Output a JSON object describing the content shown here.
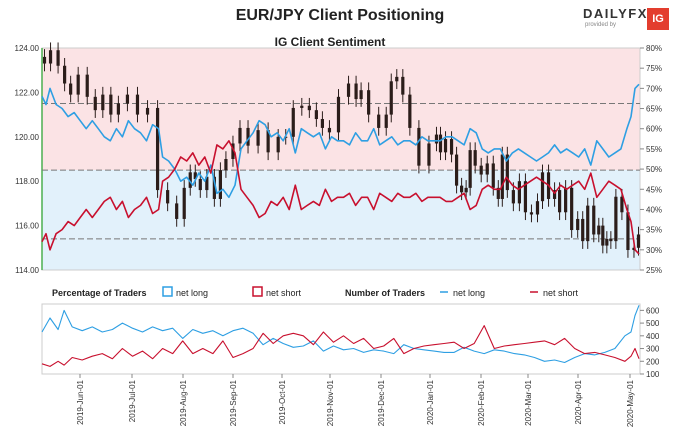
{
  "header": {
    "title": "EUR/JPY Client Positioning",
    "logo_text": "DAILYFX",
    "logo_sub": "provided by",
    "logo_badge": "IG"
  },
  "chart_data": [
    {
      "type": "line",
      "title": "IG Client Sentiment",
      "left_axis": {
        "ticks": [
          "124.00",
          "122.00",
          "120.00",
          "118.00",
          "116.00",
          "114.00"
        ],
        "range": [
          114,
          124
        ]
      },
      "right_axis": {
        "ticks": [
          "80%",
          "75%",
          "70%",
          "65%",
          "60%",
          "55%",
          "50%",
          "45%",
          "40%",
          "35%",
          "30%",
          "25%"
        ],
        "range": [
          25,
          80
        ]
      },
      "reference_lines": [
        121.5,
        118.5,
        115.4
      ],
      "colors": {
        "net_long": "#2e9fe3",
        "net_short": "#c8102e",
        "price": "#2b1d1a",
        "upper_bg": "#fbe3e5",
        "lower_bg": "#e2f1fb"
      },
      "series": [
        {
          "name": "EUR/JPY price",
          "axis": "left",
          "x": [
            0,
            5,
            12,
            20,
            25,
            32,
            40,
            50,
            56,
            65,
            72,
            80,
            90,
            100,
            110,
            120,
            130,
            138,
            145,
            150,
            155,
            160,
            168,
            175,
            180,
            186,
            194,
            200,
            210,
            220,
            230,
            240,
            245,
            255,
            262,
            270,
            276,
            282,
            290,
            300,
            310,
            315,
            320,
            330,
            340,
            345,
            350,
            356,
            362,
            370,
            380,
            390,
            395,
            398,
            405,
            410,
            415,
            420,
            424,
            428,
            434,
            440,
            446,
            452,
            456,
            460,
            466,
            472,
            478,
            484,
            490,
            496,
            500,
            508,
            512,
            518,
            524,
            530,
            536,
            540,
            546,
            552,
            556,
            560,
            564,
            568,
            574,
            580,
            586,
            592,
            595
          ],
          "y": [
            123.6,
            123.3,
            123.9,
            123.2,
            122.4,
            121.9,
            122.8,
            121.8,
            121.2,
            121.9,
            121.0,
            121.5,
            121.9,
            121.0,
            121.3,
            117.6,
            117.0,
            116.3,
            117.7,
            118.4,
            118.1,
            117.6,
            118.2,
            117.2,
            118.5,
            119.0,
            119.7,
            120.4,
            119.6,
            120.3,
            119.3,
            120.0,
            120.0,
            121.3,
            121.4,
            121.2,
            120.8,
            120.4,
            120.2,
            121.8,
            122.4,
            121.7,
            122.1,
            121.0,
            120.4,
            121.0,
            122.5,
            122.7,
            121.9,
            120.4,
            118.7,
            119.7,
            120.1,
            119.3,
            119.9,
            119.2,
            117.8,
            117.5,
            117.7,
            119.4,
            118.7,
            118.3,
            118.8,
            117.7,
            117.2,
            119.2,
            117.6,
            117.0,
            118.0,
            116.6,
            116.5,
            117.1,
            118.4,
            117.2,
            117.6,
            116.6,
            117.7,
            115.8,
            116.3,
            115.3,
            116.9,
            115.6,
            116.0,
            115.1,
            115.4,
            115.3,
            117.3,
            116.6,
            114.9,
            115.0,
            115.6
          ]
        },
        {
          "name": "net long",
          "axis": "right",
          "x": [
            0,
            4,
            8,
            14,
            20,
            26,
            32,
            38,
            44,
            50,
            56,
            62,
            68,
            74,
            80,
            86,
            92,
            98,
            104,
            110,
            116,
            120,
            126,
            132,
            138,
            144,
            150,
            156,
            162,
            168,
            174,
            180,
            186,
            192,
            198,
            204,
            210,
            216,
            222,
            228,
            234,
            240,
            246,
            252,
            258,
            264,
            270,
            276,
            282,
            288,
            294,
            300,
            306,
            312,
            318,
            324,
            330,
            336,
            342,
            348,
            354,
            360,
            366,
            372,
            378,
            384,
            390,
            396,
            402,
            408,
            414,
            420,
            426,
            432,
            438,
            444,
            450,
            456,
            462,
            468,
            474,
            480,
            486,
            492,
            498,
            504,
            510,
            516,
            522,
            528,
            534,
            540,
            546,
            552,
            558,
            564,
            570,
            576,
            582,
            586,
            590,
            594
          ],
          "y": [
            68,
            66,
            70,
            66,
            65,
            63,
            64,
            62,
            60,
            62,
            60,
            58,
            57,
            60,
            58,
            62,
            60,
            59,
            57,
            61,
            60,
            53,
            52,
            50,
            47,
            48,
            46,
            49,
            47,
            51,
            44,
            45,
            43,
            46,
            55,
            57,
            59,
            62,
            61,
            58,
            59,
            57,
            60,
            54,
            60,
            59,
            58,
            59,
            55,
            58,
            57,
            57,
            56,
            59,
            57,
            57,
            60,
            56,
            57,
            58,
            56,
            57,
            57,
            56,
            58,
            57,
            57,
            57,
            58,
            58,
            57,
            56,
            60,
            59,
            55,
            54,
            55,
            55,
            52,
            54,
            55,
            54,
            53,
            52,
            53,
            54,
            56,
            54,
            55,
            54,
            53,
            55,
            51,
            57,
            55,
            53,
            54,
            55,
            60,
            63,
            70,
            71
          ]
        },
        {
          "name": "net short",
          "axis": "right",
          "x": [
            0,
            4,
            8,
            14,
            20,
            26,
            32,
            38,
            44,
            50,
            56,
            62,
            68,
            74,
            80,
            86,
            92,
            98,
            104,
            110,
            116,
            120,
            126,
            132,
            138,
            144,
            150,
            156,
            162,
            168,
            174,
            180,
            186,
            192,
            198,
            204,
            210,
            216,
            222,
            228,
            234,
            240,
            246,
            252,
            258,
            264,
            270,
            276,
            282,
            288,
            294,
            300,
            306,
            312,
            318,
            324,
            330,
            336,
            342,
            348,
            354,
            360,
            366,
            372,
            378,
            384,
            390,
            396,
            402,
            408,
            414,
            420,
            426,
            432,
            438,
            444,
            450,
            456,
            462,
            468,
            474,
            480,
            486,
            492,
            498,
            504,
            510,
            516,
            522,
            528,
            534,
            540,
            546,
            552,
            558,
            564,
            570,
            576,
            582,
            586,
            590,
            594
          ],
          "y": [
            32,
            34,
            30,
            34,
            35,
            37,
            36,
            38,
            40,
            38,
            40,
            42,
            43,
            40,
            42,
            38,
            40,
            41,
            43,
            39,
            40,
            47,
            48,
            50,
            53,
            52,
            54,
            51,
            53,
            49,
            56,
            55,
            57,
            54,
            45,
            43,
            41,
            38,
            39,
            42,
            41,
            43,
            40,
            46,
            40,
            41,
            42,
            41,
            45,
            42,
            43,
            43,
            44,
            41,
            43,
            43,
            40,
            44,
            43,
            42,
            44,
            43,
            43,
            44,
            42,
            43,
            43,
            43,
            42,
            42,
            43,
            44,
            40,
            41,
            45,
            46,
            45,
            45,
            48,
            46,
            45,
            46,
            47,
            48,
            47,
            46,
            44,
            46,
            45,
            46,
            47,
            45,
            49,
            43,
            45,
            47,
            46,
            45,
            40,
            37,
            30,
            29
          ]
        }
      ]
    },
    {
      "type": "line",
      "title": "Percentage of Traders",
      "legend": [
        "net long",
        "net short"
      ],
      "right_axis": {
        "ticks": [
          "600",
          "500",
          "400",
          "300",
          "200",
          "100"
        ],
        "range": [
          100,
          650
        ]
      },
      "series": [
        {
          "name": "net long",
          "x": [
            0,
            8,
            16,
            22,
            30,
            40,
            50,
            60,
            70,
            80,
            90,
            100,
            110,
            120,
            130,
            140,
            150,
            160,
            170,
            180,
            190,
            200,
            210,
            220,
            230,
            240,
            250,
            260,
            270,
            280,
            290,
            300,
            310,
            320,
            330,
            340,
            350,
            360,
            370,
            380,
            390,
            400,
            410,
            420,
            430,
            440,
            450,
            460,
            470,
            480,
            490,
            500,
            510,
            520,
            530,
            540,
            550,
            560,
            570,
            580,
            586,
            590,
            594
          ],
          "y": [
            430,
            540,
            450,
            600,
            470,
            440,
            470,
            430,
            450,
            500,
            460,
            430,
            470,
            440,
            460,
            380,
            450,
            420,
            440,
            400,
            440,
            460,
            420,
            330,
            380,
            340,
            310,
            320,
            360,
            280,
            320,
            290,
            300,
            270,
            290,
            280,
            260,
            330,
            300,
            290,
            280,
            270,
            270,
            310,
            280,
            260,
            290,
            280,
            260,
            250,
            230,
            200,
            210,
            190,
            230,
            260,
            250,
            270,
            300,
            400,
            430,
            560,
            640
          ]
        },
        {
          "name": "net short",
          "x": [
            0,
            8,
            16,
            22,
            30,
            40,
            50,
            60,
            70,
            80,
            90,
            100,
            110,
            120,
            130,
            140,
            150,
            160,
            170,
            180,
            190,
            200,
            210,
            220,
            230,
            240,
            250,
            260,
            270,
            280,
            290,
            300,
            310,
            320,
            330,
            340,
            350,
            360,
            370,
            380,
            390,
            400,
            410,
            420,
            430,
            440,
            450,
            460,
            470,
            480,
            490,
            500,
            510,
            520,
            530,
            540,
            550,
            560,
            570,
            580,
            586,
            590,
            594
          ],
          "y": [
            180,
            160,
            200,
            170,
            230,
            210,
            240,
            260,
            220,
            300,
            240,
            280,
            220,
            300,
            260,
            360,
            260,
            300,
            260,
            360,
            230,
            260,
            300,
            420,
            340,
            400,
            420,
            400,
            330,
            430,
            350,
            400,
            340,
            380,
            300,
            320,
            380,
            260,
            300,
            320,
            330,
            340,
            350,
            300,
            340,
            480,
            300,
            320,
            330,
            340,
            350,
            360,
            330,
            380,
            300,
            260,
            270,
            250,
            230,
            200,
            240,
            300,
            220
          ]
        }
      ]
    },
    {
      "type": "line",
      "title": "Number of Traders",
      "legend": [
        "net long",
        "net short"
      ]
    }
  ],
  "xaxis": {
    "labels": [
      "2019-Jun-01",
      "2019-Jul-01",
      "2019-Aug-01",
      "2019-Sep-01",
      "2019-Oct-01",
      "2019-Nov-01",
      "2019-Dec-01",
      "2020-Jan-01",
      "2020-Feb-01",
      "2020-Mar-01",
      "2020-Apr-01",
      "2020-May-01"
    ]
  }
}
